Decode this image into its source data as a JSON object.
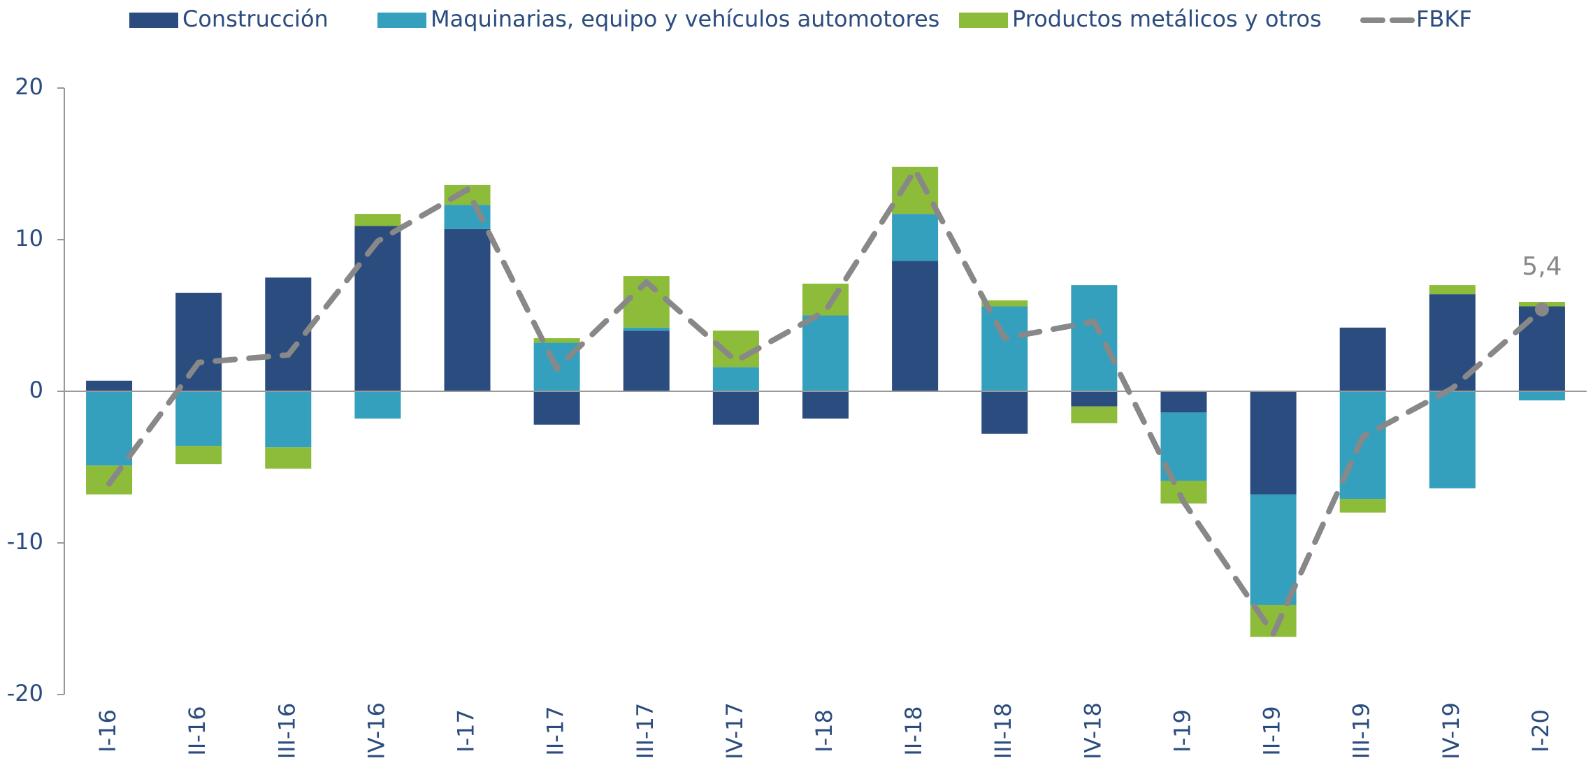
{
  "chart_data": {
    "type": "stacked_bar_line",
    "categories": [
      "I-16",
      "II-16",
      "III-16",
      "IV-16",
      "I-17",
      "II-17",
      "III-17",
      "IV-17",
      "I-18",
      "II-18",
      "III-18",
      "IV-18",
      "I-19",
      "II-19",
      "III-19",
      "IV-19",
      "I-20"
    ],
    "series": [
      {
        "name": "Construcción",
        "type": "bar",
        "color": "#2b4c7e",
        "values": [
          0.7,
          6.5,
          7.5,
          10.9,
          10.7,
          -2.2,
          4.0,
          -2.2,
          -1.8,
          8.6,
          -2.8,
          -1.0,
          -1.4,
          -6.8,
          4.2,
          6.4,
          5.6
        ]
      },
      {
        "name": "Maquinarias, equipo y vehículos automotores",
        "type": "bar",
        "color": "#35a0bd",
        "values": [
          -4.9,
          -3.6,
          -3.7,
          -1.8,
          1.6,
          3.2,
          0.2,
          1.6,
          5.0,
          3.1,
          5.6,
          7.0,
          -4.5,
          -7.3,
          -7.1,
          -6.4,
          -0.6
        ]
      },
      {
        "name": "Productos metálicos y otros",
        "type": "bar",
        "color": "#8dbb3a",
        "values": [
          -1.9,
          -1.2,
          -1.4,
          0.8,
          1.3,
          0.3,
          3.4,
          2.4,
          2.1,
          3.1,
          0.4,
          -1.1,
          -1.5,
          -2.1,
          -0.9,
          0.6,
          0.3
        ]
      },
      {
        "name": "FBKF",
        "type": "line",
        "color": "#888888",
        "values": [
          -6.1,
          1.9,
          2.4,
          9.9,
          13.3,
          1.5,
          7.2,
          2.0,
          5.3,
          14.6,
          3.5,
          4.6,
          -7.3,
          -16.0,
          -3.0,
          0.2,
          5.4
        ],
        "value_labels": [
          null,
          null,
          null,
          null,
          null,
          null,
          null,
          null,
          null,
          null,
          null,
          null,
          null,
          null,
          null,
          null,
          "5,4"
        ]
      }
    ],
    "ylim": [
      -20,
      20
    ],
    "yticks": [
      -20,
      -10,
      0,
      10,
      20
    ],
    "legend": "top"
  }
}
